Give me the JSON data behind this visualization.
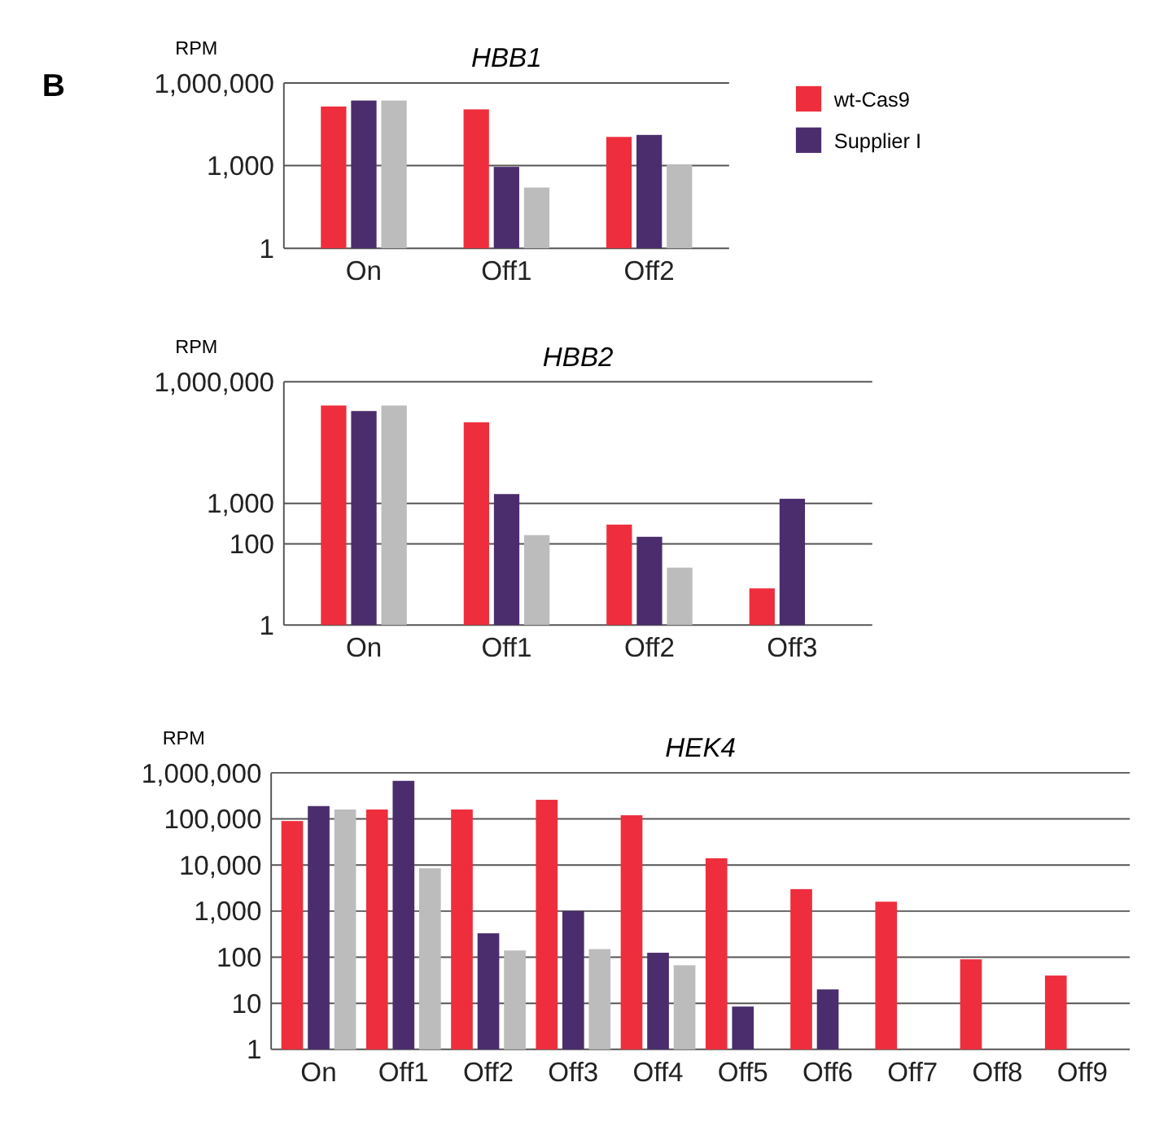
{
  "chart_data": [
    {
      "type": "bar",
      "title": "HBB1",
      "ylabel": "RPM",
      "annotations": [
        "B"
      ],
      "categories": [
        "On",
        "Off1",
        "Off2"
      ],
      "log": true,
      "grid": "y",
      "legend": "right",
      "ylim": [
        1,
        1000000
      ],
      "yticks": [
        {
          "value": 1,
          "label": "1"
        },
        {
          "value": 1000,
          "label": "1,000"
        },
        {
          "value": 1000000,
          "label": "1,000,000"
        }
      ],
      "series": [
        {
          "name": "wt-Cas9",
          "color": "#ee2e3c",
          "values": [
            140000,
            110000,
            11000
          ]
        },
        {
          "name": "Supplier I",
          "color": "#4b2d6e",
          "values": [
            230000,
            900,
            13000
          ]
        },
        {
          "color": "#bcbcbd",
          "values": [
            230000,
            160,
            1100
          ]
        }
      ]
    },
    {
      "type": "bar",
      "title": "HBB2",
      "ylabel": "RPM",
      "categories": [
        "On",
        "Off1",
        "Off2",
        "Off3"
      ],
      "log": true,
      "grid": "y",
      "ylim": [
        1,
        1000000
      ],
      "yticks": [
        {
          "value": 1,
          "label": "1"
        },
        {
          "value": 100,
          "label": "100"
        },
        {
          "value": 1000,
          "label": "1,000"
        },
        {
          "value": 1000000,
          "label": "1,000,000"
        }
      ],
      "series": [
        {
          "color": "#ee2e3c",
          "values": [
            260000,
            100000,
            300,
            8
          ]
        },
        {
          "color": "#4b2d6e",
          "values": [
            190000,
            1700,
            150,
            1300
          ]
        },
        {
          "color": "#bcbcbd",
          "values": [
            260000,
            165,
            26,
            null
          ]
        }
      ]
    },
    {
      "type": "bar",
      "title": "HEK4",
      "ylabel": "RPM",
      "categories": [
        "On",
        "Off1",
        "Off2",
        "Off3",
        "Off4",
        "Off5",
        "Off6",
        "Off7",
        "Off8",
        "Off9"
      ],
      "log": true,
      "grid": "y",
      "ylim": [
        1,
        1000000
      ],
      "yticks": [
        {
          "value": 1,
          "label": "1"
        },
        {
          "value": 10,
          "label": "10"
        },
        {
          "value": 100,
          "label": "100"
        },
        {
          "value": 1000,
          "label": "1,000"
        },
        {
          "value": 10000,
          "label": "10,000"
        },
        {
          "value": 100000,
          "label": "100,000"
        },
        {
          "value": 1000000,
          "label": "1,000,000"
        }
      ],
      "series": [
        {
          "color": "#ee2e3c",
          "values": [
            90000,
            160000,
            160000,
            260000,
            120000,
            14000,
            3000,
            1600,
            90,
            40
          ]
        },
        {
          "color": "#4b2d6e",
          "values": [
            190000,
            670000,
            330,
            1000,
            125,
            8.5,
            20,
            null,
            null,
            null
          ]
        },
        {
          "color": "#bcbcbd",
          "values": [
            160000,
            8500,
            140,
            150,
            67,
            null,
            null,
            null,
            null,
            null
          ]
        }
      ]
    }
  ]
}
